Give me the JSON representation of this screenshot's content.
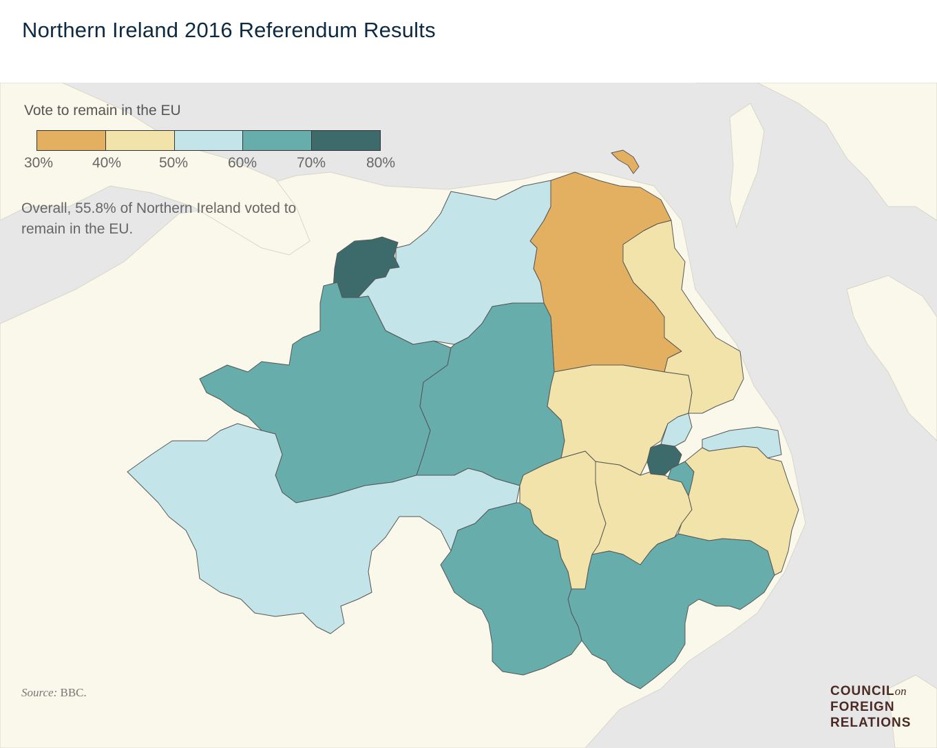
{
  "title": "Northern Ireland 2016 Referendum Results",
  "legend": {
    "title": "Vote to remain in the EU",
    "ticks": [
      "30%",
      "40%",
      "50%",
      "60%",
      "70%",
      "80%"
    ],
    "colors": [
      "#e3b062",
      "#f1e3a9",
      "#c3e4e8",
      "#66adab",
      "#3d6b6b"
    ]
  },
  "note": "Overall, 55.8% of Northern Ireland voted to remain in the EU.",
  "source": {
    "label": "Source:",
    "text": " BBC."
  },
  "logo": {
    "line1": "COUNCIL",
    "on": "on",
    "line2": "FOREIGN",
    "line3": "RELATIONS"
  },
  "colors": {
    "land": "#faf8ea",
    "sea": "#e7e7e7",
    "border": "#555555"
  }
}
